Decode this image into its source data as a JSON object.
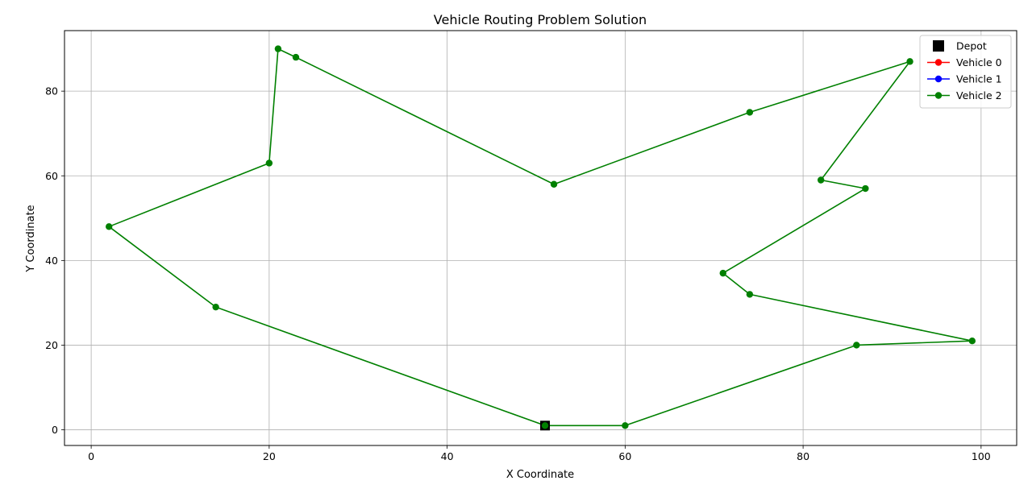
{
  "chart_data": {
    "type": "line",
    "title": "Vehicle Routing Problem Solution",
    "xlabel": "X Coordinate",
    "ylabel": "Y Coordinate",
    "xlim": [
      -3,
      104
    ],
    "ylim": [
      -3.7,
      94.3
    ],
    "xticks": [
      0,
      20,
      40,
      60,
      80,
      100
    ],
    "yticks": [
      0,
      20,
      40,
      60,
      80
    ],
    "grid": true,
    "legend_position": "top-right",
    "depot": {
      "name": "Depot",
      "x": 51,
      "y": 1,
      "color": "#000000",
      "marker": "square"
    },
    "series": [
      {
        "name": "Vehicle 0",
        "color": "#ff0000",
        "points": []
      },
      {
        "name": "Vehicle 1",
        "color": "#0000ff",
        "points": []
      },
      {
        "name": "Vehicle 2",
        "color": "#008000",
        "points": [
          [
            51,
            1
          ],
          [
            60,
            1
          ],
          [
            86,
            20
          ],
          [
            99,
            21
          ],
          [
            74,
            32
          ],
          [
            71,
            37
          ],
          [
            87,
            57
          ],
          [
            82,
            59
          ],
          [
            92,
            87
          ],
          [
            74,
            75
          ],
          [
            52,
            58
          ],
          [
            23,
            88
          ],
          [
            21,
            90
          ],
          [
            20,
            63
          ],
          [
            2,
            48
          ],
          [
            14,
            29
          ],
          [
            51,
            1
          ]
        ]
      }
    ]
  }
}
